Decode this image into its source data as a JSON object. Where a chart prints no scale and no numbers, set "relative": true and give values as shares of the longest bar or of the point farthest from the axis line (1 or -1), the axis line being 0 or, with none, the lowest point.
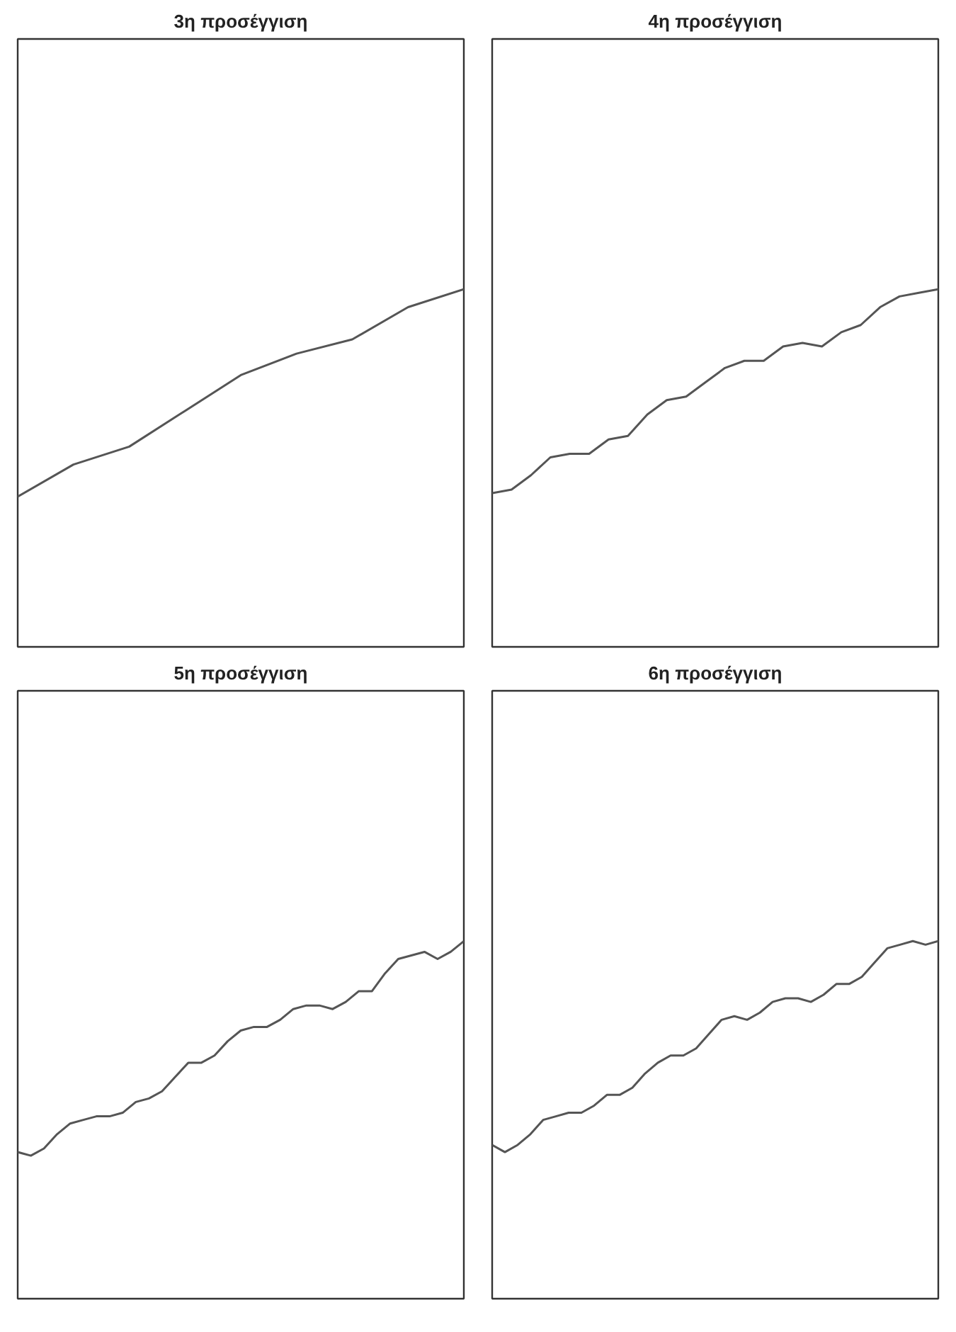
{
  "chart_data": [
    {
      "type": "line",
      "title": "3η προσέγγιση",
      "relative": true,
      "grid": false,
      "color": "#555555",
      "categories": [
        null,
        null,
        null,
        null,
        null,
        null,
        null,
        null,
        null
      ],
      "values": [
        0.42,
        0.51,
        0.56,
        0.66,
        0.76,
        0.82,
        0.86,
        0.95,
        1.0
      ]
    },
    {
      "type": "line",
      "title": "4η προσέγγιση",
      "relative": true,
      "grid": false,
      "color": "#555555",
      "categories": [
        null,
        null,
        null,
        null,
        null,
        null,
        null,
        null,
        null,
        null,
        null,
        null,
        null,
        null,
        null,
        null,
        null,
        null,
        null,
        null,
        null,
        null,
        null,
        null
      ],
      "values": [
        0.43,
        0.44,
        0.48,
        0.53,
        0.54,
        0.54,
        0.58,
        0.59,
        0.65,
        0.69,
        0.7,
        0.74,
        0.78,
        0.8,
        0.8,
        0.84,
        0.85,
        0.84,
        0.88,
        0.9,
        0.95,
        0.98,
        0.99,
        1.0
      ]
    },
    {
      "type": "line",
      "title": "5η προσέγγιση",
      "relative": true,
      "grid": false,
      "color": "#555555",
      "categories": [
        null,
        null,
        null,
        null,
        null,
        null,
        null,
        null,
        null,
        null,
        null,
        null,
        null,
        null,
        null,
        null,
        null,
        null,
        null,
        null,
        null,
        null,
        null,
        null,
        null,
        null,
        null,
        null,
        null,
        null,
        null,
        null,
        null,
        null,
        null
      ],
      "values": [
        0.41,
        0.4,
        0.42,
        0.46,
        0.49,
        0.5,
        0.51,
        0.51,
        0.52,
        0.55,
        0.56,
        0.58,
        0.62,
        0.66,
        0.66,
        0.68,
        0.72,
        0.75,
        0.76,
        0.76,
        0.78,
        0.81,
        0.82,
        0.82,
        0.81,
        0.83,
        0.86,
        0.86,
        0.91,
        0.95,
        0.96,
        0.97,
        0.95,
        0.97,
        1.0
      ]
    },
    {
      "type": "line",
      "title": "6η προσέγγιση",
      "relative": true,
      "grid": false,
      "color": "#555555",
      "categories": [
        null,
        null,
        null,
        null,
        null,
        null,
        null,
        null,
        null,
        null,
        null,
        null,
        null,
        null,
        null,
        null,
        null,
        null,
        null,
        null,
        null,
        null,
        null,
        null,
        null,
        null,
        null,
        null,
        null,
        null,
        null,
        null,
        null,
        null,
        null,
        null
      ],
      "values": [
        0.43,
        0.41,
        0.43,
        0.46,
        0.5,
        0.51,
        0.52,
        0.52,
        0.54,
        0.57,
        0.57,
        0.59,
        0.63,
        0.66,
        0.68,
        0.68,
        0.7,
        0.74,
        0.78,
        0.79,
        0.78,
        0.8,
        0.83,
        0.84,
        0.84,
        0.83,
        0.85,
        0.88,
        0.88,
        0.9,
        0.94,
        0.98,
        0.99,
        1.0,
        0.99,
        1.0
      ]
    }
  ]
}
